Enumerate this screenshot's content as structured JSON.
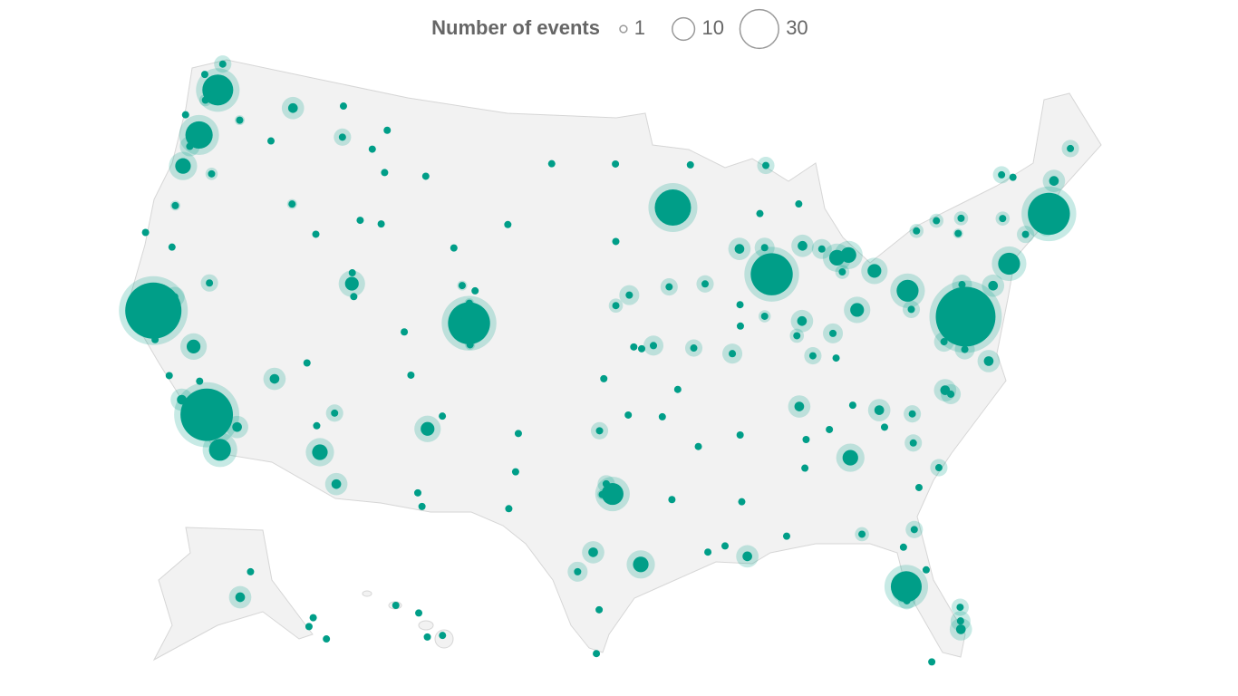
{
  "legend": {
    "title": "Number of events",
    "values": [
      1,
      10,
      30
    ]
  },
  "points": [
    [
      -122.33,
      47.61,
      38
    ],
    [
      -122.48,
      48.75,
      6
    ],
    [
      -122.44,
      47.25,
      4
    ],
    [
      -122.9,
      47.04,
      3
    ],
    [
      -117.43,
      47.66,
      10
    ],
    [
      -114,
      46.87,
      6
    ],
    [
      -123.4,
      48.1,
      1
    ],
    [
      -122.68,
      45.52,
      32
    ],
    [
      -123.03,
      44.94,
      8
    ],
    [
      -123.09,
      44.05,
      16
    ],
    [
      -121.31,
      44.06,
      3
    ],
    [
      -122.87,
      42.33,
      2
    ],
    [
      -120.5,
      46.6,
      2
    ],
    [
      -118.3,
      46.06,
      1
    ],
    [
      -123.83,
      46.19,
      1
    ],
    [
      -124.08,
      40.87,
      1
    ],
    [
      -122.39,
      40.59,
      1
    ],
    [
      -121.49,
      38.58,
      8
    ],
    [
      -122.42,
      37.77,
      95
    ],
    [
      -122.03,
      36.97,
      2
    ],
    [
      -121.9,
      36.6,
      1
    ],
    [
      -119.79,
      36.74,
      14
    ],
    [
      -120.66,
      35.28,
      1
    ],
    [
      -119.7,
      34.42,
      10
    ],
    [
      -119.02,
      35.37,
      1
    ],
    [
      -118.24,
      34.05,
      85
    ],
    [
      -117.16,
      32.72,
      24
    ],
    [
      -116.55,
      33.83,
      10
    ],
    [
      -119.81,
      39.53,
      6
    ],
    [
      -115.14,
      36.17,
      10
    ],
    [
      -111.89,
      40.76,
      14
    ],
    [
      -116.2,
      43.62,
      2
    ],
    [
      -114.46,
      42.56,
      1
    ],
    [
      -112.03,
      43.49,
      1
    ],
    [
      -112.03,
      46.59,
      1
    ],
    [
      -108.5,
      45.78,
      1
    ],
    [
      -111.3,
      47.5,
      1
    ],
    [
      -111.04,
      45.68,
      1
    ],
    [
      -114.31,
      48.2,
      1
    ],
    [
      -110.76,
      43.48,
      1
    ],
    [
      -106.3,
      42.87,
      1
    ],
    [
      -104.82,
      41.14,
      1
    ],
    [
      -105.59,
      41.31,
      2
    ],
    [
      -104.99,
      39.74,
      60
    ],
    [
      -105.27,
      40.01,
      3
    ],
    [
      -105.08,
      40.59,
      2
    ],
    [
      -104.82,
      38.83,
      2
    ],
    [
      -108.55,
      39.06,
      1
    ],
    [
      -107.88,
      37.27,
      1
    ],
    [
      -105.94,
      35.69,
      1
    ],
    [
      -106.65,
      35.08,
      14
    ],
    [
      -111.65,
      35.2,
      6
    ],
    [
      -112.07,
      33.45,
      16
    ],
    [
      -110.97,
      32.22,
      10
    ],
    [
      -112.47,
      34.54,
      1
    ],
    [
      -106.78,
      32.32,
      1
    ],
    [
      -106.49,
      31.76,
      1
    ],
    [
      -111.66,
      40.23,
      1
    ],
    [
      -113.58,
      37.1,
      1
    ],
    [
      -111.97,
      41.22,
      1
    ],
    [
      -96.79,
      46.88,
      1
    ],
    [
      -100.78,
      46.81,
      1
    ],
    [
      -96.73,
      43.55,
      1
    ],
    [
      -103.23,
      44.08,
      1
    ],
    [
      -95.93,
      41.26,
      8
    ],
    [
      -96.7,
      40.81,
      4
    ],
    [
      -94.58,
      39.1,
      8
    ],
    [
      -97.33,
      37.69,
      1
    ],
    [
      -95.68,
      39.05,
      1
    ],
    [
      -95.24,
      38.97,
      1
    ],
    [
      -97.52,
      35.47,
      6
    ],
    [
      -95.99,
      36.15,
      1
    ],
    [
      -93.27,
      44.98,
      48
    ],
    [
      -92.1,
      46.79,
      1
    ],
    [
      -93.62,
      41.59,
      6
    ],
    [
      -91.53,
      41.66,
      6
    ],
    [
      -89.4,
      43.07,
      10
    ],
    [
      -87.91,
      43.04,
      8
    ],
    [
      -88.02,
      44.51,
      1
    ],
    [
      -87.63,
      41.88,
      60
    ],
    [
      -88.24,
      40.12,
      3
    ],
    [
      -89.65,
      39.78,
      1
    ],
    [
      -89.59,
      40.69,
      1
    ],
    [
      -90.2,
      38.63,
      8
    ],
    [
      -92.33,
      38.95,
      6
    ],
    [
      -93.29,
      37.21,
      1
    ],
    [
      -90.05,
      35.15,
      1
    ],
    [
      -92.29,
      34.75,
      1
    ],
    [
      -94.16,
      36.06,
      1
    ],
    [
      -96.8,
      32.78,
      24
    ],
    [
      -97.33,
      32.75,
      2
    ],
    [
      -97.13,
      33.21,
      6
    ],
    [
      -97.74,
      30.27,
      10
    ],
    [
      -98.49,
      29.42,
      8
    ],
    [
      -95.37,
      29.76,
      16
    ],
    [
      -97.4,
      27.8,
      1
    ],
    [
      -97.5,
      25.9,
      1
    ],
    [
      -101.85,
      33.58,
      1
    ],
    [
      -101.83,
      35.22,
      1
    ],
    [
      -102.08,
      31.99,
      1
    ],
    [
      -93.75,
      32.52,
      1
    ],
    [
      -90.07,
      29.95,
      10
    ],
    [
      -91.15,
      30.45,
      1
    ],
    [
      -92.02,
      30.22,
      1
    ],
    [
      -90.18,
      32.3,
      1
    ],
    [
      -86.8,
      33.52,
      1
    ],
    [
      -86.59,
      34.73,
      1
    ],
    [
      -88.04,
      30.69,
      1
    ],
    [
      -86.78,
      36.16,
      10
    ],
    [
      -83.92,
      35.96,
      1
    ],
    [
      -85.31,
      35.05,
      1
    ],
    [
      -84.39,
      33.75,
      16
    ],
    [
      -85.76,
      38.25,
      6
    ],
    [
      -84.5,
      38.04,
      1
    ],
    [
      -84.51,
      39.1,
      8
    ],
    [
      -82.99,
      39.96,
      14
    ],
    [
      -81.69,
      41.5,
      14
    ],
    [
      -86.16,
      39.77,
      10
    ],
    [
      -86.53,
      39.17,
      4
    ],
    [
      -83.05,
      42.33,
      16
    ],
    [
      -83.74,
      42.28,
      16
    ],
    [
      -85.67,
      42.96,
      10
    ],
    [
      -84.56,
      42.73,
      8
    ],
    [
      -85.62,
      44.76,
      1
    ],
    [
      -87.4,
      46.55,
      6
    ],
    [
      -83.54,
      41.65,
      4
    ],
    [
      -79.99,
      40.44,
      24
    ],
    [
      -78.88,
      42.89,
      4
    ],
    [
      -77.61,
      43.16,
      4
    ],
    [
      -76.15,
      43.05,
      4
    ],
    [
      -73.76,
      42.65,
      4
    ],
    [
      -76.5,
      42.44,
      2
    ],
    [
      -75.17,
      39.95,
      10
    ],
    [
      -74.0,
      40.71,
      24
    ],
    [
      -77.04,
      38.9,
      105
    ],
    [
      -71.06,
      42.36,
      60
    ],
    [
      -70.26,
      43.66,
      10
    ],
    [
      -68.77,
      44.8,
      6
    ],
    [
      -73.21,
      44.48,
      6
    ],
    [
      -72.58,
      44.26,
      1
    ],
    [
      -72.68,
      41.76,
      6
    ],
    [
      -71.41,
      41.82,
      6
    ],
    [
      -77.44,
      37.54,
      8
    ],
    [
      -76.29,
      36.85,
      10
    ],
    [
      -78.64,
      35.78,
      8
    ],
    [
      -78.9,
      35.99,
      10
    ],
    [
      -80.84,
      35.23,
      6
    ],
    [
      -82.55,
      35.6,
      10
    ],
    [
      -82.4,
      34.85,
      1
    ],
    [
      -81.03,
      34.0,
      6
    ],
    [
      -79.93,
      32.78,
      6
    ],
    [
      -81.1,
      32.08,
      1
    ],
    [
      -81.66,
      30.33,
      6
    ],
    [
      -84.28,
      30.44,
      4
    ],
    [
      -82.32,
      29.65,
      1
    ],
    [
      -81.38,
      28.54,
      1
    ],
    [
      -82.46,
      27.95,
      38
    ],
    [
      -82.64,
      27.77,
      10
    ],
    [
      -82.53,
      27.34,
      6
    ],
    [
      -80.19,
      25.76,
      10
    ],
    [
      -80.14,
      26.12,
      8
    ],
    [
      -80.05,
      26.71,
      6
    ],
    [
      -81.78,
      24.56,
      1
    ],
    [
      -76.88,
      40.27,
      8
    ],
    [
      -78.48,
      38.03,
      8
    ],
    [
      -79.96,
      39.63,
      6
    ],
    [
      -76.61,
      39.29,
      8
    ],
    [
      -149.9,
      61.2,
      10
    ],
    [
      -147.7,
      64.8,
      1
    ],
    [
      -134.4,
      58.3,
      1
    ],
    [
      -135.3,
      57.05,
      1
    ],
    [
      -131.6,
      55.3,
      1
    ],
    [
      -157.86,
      21.3,
      1
    ],
    [
      -155.09,
      19.72,
      1
    ],
    [
      -155.99,
      19.64,
      1
    ],
    [
      -156.5,
      20.9,
      1
    ]
  ]
}
